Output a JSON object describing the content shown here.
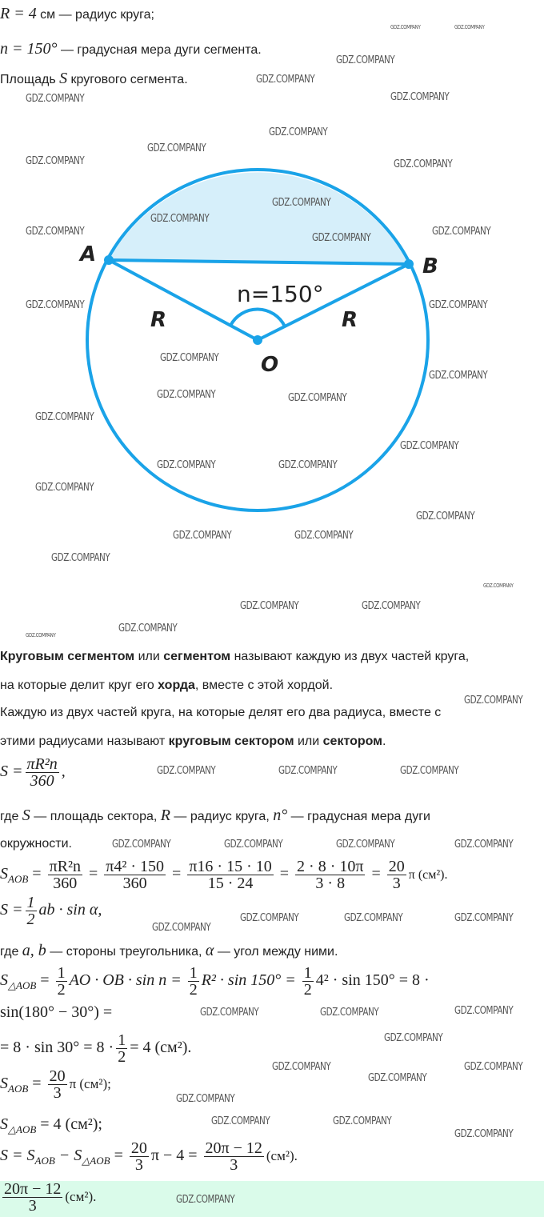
{
  "given": {
    "line1_var": "R = 4",
    "line1_text": " см — радиус круга;",
    "line2_var": "n = 150°",
    "line2_text": " — градусная мера дуги сегмента.",
    "line3_a": "Площадь ",
    "line3_var": "S",
    "line3_b": " кругового сегмента."
  },
  "diagram": {
    "label_a": "A",
    "label_b": "B",
    "label_o": "O",
    "label_r_left": "R",
    "label_r_right": "R",
    "angle_label": "n=150°",
    "stroke_color": "#1aa3e8",
    "fill_color": "#d6effa"
  },
  "theory": {
    "p1": [
      "Круговым сегментом",
      " или ",
      "сегментом",
      " называют каждую из двух частей круга,"
    ],
    "p1_line2": [
      "на которые делит круг его ",
      "хорда",
      ", вместе с этой хордой."
    ],
    "p2_line1": "Каждую из двух частей круга, на которые делят его два радиуса, вместе с",
    "p2_line2": [
      "этими радиусами называют ",
      "круговым сектором",
      " или ",
      "сектором",
      "."
    ]
  },
  "solution": {
    "f1": {
      "lhs": "S =",
      "num": "πR²n",
      "den": "360",
      "tail": ","
    },
    "where1": [
      "где ",
      "S",
      " — площадь сектора, ",
      "R",
      " — радиус круга, ",
      "n°",
      " — градусная мера дуги"
    ],
    "where1_line2": "окружности.",
    "f2": {
      "lhs": "S",
      "sub": "AOB",
      "n1": "πR²n",
      "d1": "360",
      "n2": "π4² · 150",
      "d2": "360",
      "n3": "π16 · 15 · 10",
      "d3": "15 · 24",
      "n4": "2 · 8 · 10π",
      "d4": "3 · 8",
      "n5": "20",
      "d5": "3",
      "tail": "π (см²)."
    },
    "f3": {
      "lhs": "S =",
      "num": "1",
      "den": "2",
      "tail": "ab · sin α,"
    },
    "where2": [
      "где ",
      "a,  b",
      " — стороны треугольника, ",
      "α",
      " — угол между ними."
    ],
    "f4": {
      "lhs": "S",
      "sub": "△AOB",
      "t1": "AO · OB · sin n =",
      "t2": "R² · sin 150° =",
      "t3": "4² · sin 150° = 8 ·",
      "num": "1",
      "den": "2"
    },
    "f4_line2": "sin(180° − 30°) =",
    "f4_line3": {
      "a": "= 8 · sin 30° = 8 ·",
      "num": "1",
      "den": "2",
      "b": "= 4 (см²)."
    },
    "f5": {
      "lhs": "S",
      "sub": "AOB",
      "num": "20",
      "den": "3",
      "tail": "π (см²);"
    },
    "f6": {
      "lhs": "S",
      "sub": "△AOB",
      "tail": "= 4 (см²);"
    },
    "f7": {
      "a": "S = S",
      "sub1": "AOB",
      "b": " − S",
      "sub2": "△AOB",
      "c": " =",
      "n1": "20",
      "d1": "3",
      "d": "π − 4 =",
      "n2": "20π − 12",
      "d2": "3",
      "tail": "(см²)."
    }
  },
  "answer": {
    "num": "20π − 12",
    "den": "3",
    "tail": "(см²).",
    "bg_color": "#dafbea"
  },
  "watermark": "GDZ.COMPANY"
}
